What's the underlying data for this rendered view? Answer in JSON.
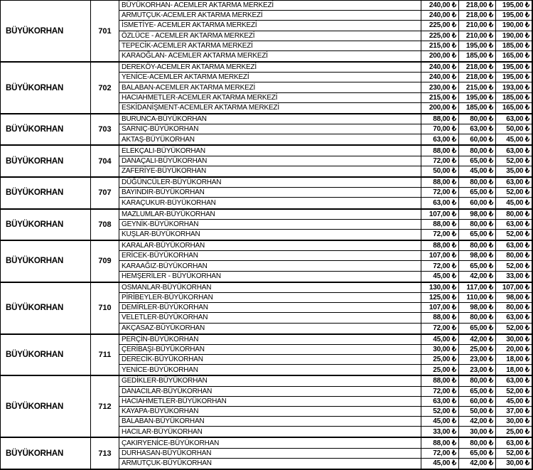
{
  "table": {
    "description": "fare-table",
    "currency_symbol": "₺",
    "groups": [
      {
        "region": "BÜYÜKORHAN",
        "route_no": "701",
        "rows": [
          {
            "name": "BÜYÜKORHAN- ACEMLER AKTARMA MERKEZİ",
            "fares": [
              "240,00 ₺",
              "218,00 ₺",
              "195,00 ₺"
            ]
          },
          {
            "name": "ARMUTÇUK-ACEMLER AKTARMA MERKEZİ",
            "fares": [
              "240,00 ₺",
              "218,00 ₺",
              "195,00 ₺"
            ]
          },
          {
            "name": "İSMETİYE- ACEMLER AKTARMA MERKEZİ",
            "fares": [
              "225,00 ₺",
              "210,00 ₺",
              "190,00 ₺"
            ]
          },
          {
            "name": "ÖZLÜCE - ACEMLER AKTARMA MERKEZİ",
            "fares": [
              "225,00 ₺",
              "210,00 ₺",
              "190,00 ₺"
            ]
          },
          {
            "name": "TEPECİK-ACEMLER AKTARMA MERKEZİ",
            "fares": [
              "215,00 ₺",
              "195,00 ₺",
              "185,00 ₺"
            ]
          },
          {
            "name": "KARAOĞLAN- ACEMLER AKTARMA MERKEZİ",
            "fares": [
              "200,00 ₺",
              "185,00 ₺",
              "165,00 ₺"
            ]
          }
        ]
      },
      {
        "region": "BÜYÜKORHAN",
        "route_no": "702",
        "rows": [
          {
            "name": "DEREKÖY-ACEMLER AKTARMA MERKEZİ",
            "fares": [
              "240,00 ₺",
              "218,00 ₺",
              "195,00 ₺"
            ]
          },
          {
            "name": "YENİCE-ACEMLER AKTARMA MERKEZİ",
            "fares": [
              "240,00 ₺",
              "218,00 ₺",
              "195,00 ₺"
            ]
          },
          {
            "name": "BALABAN-ACEMLER AKTARMA MERKEZİ",
            "fares": [
              "230,00 ₺",
              "215,00 ₺",
              "193,00 ₺"
            ]
          },
          {
            "name": "HACIAHMETLER-ACEMLER AKTARMA MERKEZİ",
            "fares": [
              "215,00 ₺",
              "195,00 ₺",
              "185,00 ₺"
            ]
          },
          {
            "name": "ESKİDANİŞMENT-ACEMLER AKTARMA MERKEZİ",
            "fares": [
              "200,00 ₺",
              "185,00 ₺",
              "165,00 ₺"
            ]
          }
        ]
      },
      {
        "region": "BÜYÜKORHAN",
        "route_no": "703",
        "rows": [
          {
            "name": "BURUNCA-BÜYÜKORHAN",
            "fares": [
              "88,00 ₺",
              "80,00 ₺",
              "63,00 ₺"
            ]
          },
          {
            "name": "SARNIÇ-BÜYÜKORHAN",
            "fares": [
              "70,00 ₺",
              "63,00 ₺",
              "50,00 ₺"
            ]
          },
          {
            "name": "AKTAŞ-BÜYÜKORHAN",
            "fares": [
              "63,00 ₺",
              "60,00 ₺",
              "45,00 ₺"
            ]
          }
        ]
      },
      {
        "region": "BÜYÜKORHAN",
        "route_no": "704",
        "rows": [
          {
            "name": "ELEKÇALI-BÜYÜKORHAN",
            "fares": [
              "88,00 ₺",
              "80,00 ₺",
              "63,00 ₺"
            ]
          },
          {
            "name": "DANAÇALI-BÜYÜKORHAN",
            "fares": [
              "72,00 ₺",
              "65,00 ₺",
              "52,00 ₺"
            ]
          },
          {
            "name": "ZAFERİYE-BÜYÜKORHAN",
            "fares": [
              "50,00 ₺",
              "45,00 ₺",
              "35,00 ₺"
            ]
          }
        ]
      },
      {
        "region": "BÜYÜKORHAN",
        "route_no": "707",
        "rows": [
          {
            "name": "DÜĞÜNCÜLER-BÜYÜKORHAN",
            "fares": [
              "88,00 ₺",
              "80,00 ₺",
              "63,00 ₺"
            ]
          },
          {
            "name": "BAYINDIR-BÜYÜKORHAN",
            "fares": [
              "72,00 ₺",
              "65,00 ₺",
              "52,00 ₺"
            ]
          },
          {
            "name": "KARAÇUKUR-BÜYÜKORHAN",
            "fares": [
              "63,00 ₺",
              "60,00 ₺",
              "45,00 ₺"
            ]
          }
        ]
      },
      {
        "region": "BÜYÜKORHAN",
        "route_no": "708",
        "rows": [
          {
            "name": "MAZLUMLAR-BÜYÜKORHAN",
            "fares": [
              "107,00 ₺",
              "98,00 ₺",
              "80,00 ₺"
            ]
          },
          {
            "name": "GEYNİK-BÜYÜKORHAN",
            "fares": [
              "88,00 ₺",
              "80,00 ₺",
              "63,00 ₺"
            ]
          },
          {
            "name": "KUŞLAR-BÜYÜKORHAN",
            "fares": [
              "72,00 ₺",
              "65,00 ₺",
              "52,00 ₺"
            ]
          }
        ]
      },
      {
        "region": "BÜYÜKORHAN",
        "route_no": "709",
        "rows": [
          {
            "name": "KARALAR-BÜYÜKORHAN",
            "fares": [
              "88,00 ₺",
              "80,00 ₺",
              "63,00 ₺"
            ]
          },
          {
            "name": "ERİCEK-BÜYÜKORHAN",
            "fares": [
              "107,00 ₺",
              "98,00 ₺",
              "80,00 ₺"
            ]
          },
          {
            "name": "KARAAĞIZ-BÜYÜKORHAN",
            "fares": [
              "72,00 ₺",
              "65,00 ₺",
              "52,00 ₺"
            ]
          },
          {
            "name": "HEMŞERİLER - BÜYÜKORHAN",
            "fares": [
              "45,00 ₺",
              "42,00 ₺",
              "33,00 ₺"
            ]
          }
        ]
      },
      {
        "region": "BÜYÜKORHAN",
        "route_no": "710",
        "rows": [
          {
            "name": "OSMANLAR-BÜYÜKORHAN",
            "fares": [
              "130,00 ₺",
              "117,00 ₺",
              "107,00 ₺"
            ]
          },
          {
            "name": "PİRİBEYLER-BÜYÜKORHAN",
            "fares": [
              "125,00 ₺",
              "110,00 ₺",
              "98,00 ₺"
            ]
          },
          {
            "name": "DEMİRLER-BÜYÜKORHAN",
            "fares": [
              "107,00 ₺",
              "98,00 ₺",
              "80,00 ₺"
            ]
          },
          {
            "name": "VELETLER-BÜYÜKORHAN",
            "fares": [
              "88,00 ₺",
              "80,00 ₺",
              "63,00 ₺"
            ]
          },
          {
            "name": "AKÇASAZ-BÜYÜKORHAN",
            "fares": [
              "72,00 ₺",
              "65,00 ₺",
              "52,00 ₺"
            ]
          }
        ]
      },
      {
        "region": "BÜYÜKORHAN",
        "route_no": "711",
        "rows": [
          {
            "name": "PERÇİN-BÜYÜKORHAN",
            "fares": [
              "45,00 ₺",
              "42,00 ₺",
              "30,00 ₺"
            ]
          },
          {
            "name": "ÇERİBAŞI-BÜYÜKORHAN",
            "fares": [
              "30,00 ₺",
              "25,00 ₺",
              "20,00 ₺"
            ]
          },
          {
            "name": "DERECİK-BÜYÜKORHAN",
            "fares": [
              "25,00 ₺",
              "23,00 ₺",
              "18,00 ₺"
            ]
          },
          {
            "name": "YENİCE-BÜYÜKORHAN",
            "fares": [
              "25,00 ₺",
              "23,00 ₺",
              "18,00 ₺"
            ]
          }
        ]
      },
      {
        "region": "BÜYÜKORHAN",
        "route_no": "712",
        "rows": [
          {
            "name": "GEDİKLER-BÜYÜKORHAN",
            "fares": [
              "88,00 ₺",
              "80,00 ₺",
              "63,00 ₺"
            ]
          },
          {
            "name": "DANACILAR-BÜYÜKORHAN",
            "fares": [
              "72,00 ₺",
              "65,00 ₺",
              "52,00 ₺"
            ]
          },
          {
            "name": "HACIAHMETLER-BÜYÜKORHAN",
            "fares": [
              "63,00 ₺",
              "60,00 ₺",
              "45,00 ₺"
            ]
          },
          {
            "name": "KAYAPA-BÜYÜKORHAN",
            "fares": [
              "52,00 ₺",
              "50,00 ₺",
              "37,00 ₺"
            ]
          },
          {
            "name": "BALABAN-BÜYÜKORHAN",
            "fares": [
              "45,00 ₺",
              "42,00 ₺",
              "30,00 ₺"
            ]
          },
          {
            "name": "HACILAR-BÜYÜKORHAN",
            "fares": [
              "33,00 ₺",
              "30,00 ₺",
              "25,00 ₺"
            ]
          }
        ]
      },
      {
        "region": "BÜYÜKORHAN",
        "route_no": "713",
        "rows": [
          {
            "name": "ÇAKIRYENİCE-BÜYÜKORHAN",
            "fares": [
              "88,00 ₺",
              "80,00 ₺",
              "63,00 ₺"
            ]
          },
          {
            "name": "DURHASAN-BÜYÜKORHAN",
            "fares": [
              "72,00 ₺",
              "65,00 ₺",
              "52,00 ₺"
            ]
          },
          {
            "name": "ARMUTÇUK-BÜYÜKORHAN",
            "fares": [
              "45,00 ₺",
              "42,00 ₺",
              "30,00 ₺"
            ]
          }
        ]
      }
    ]
  }
}
